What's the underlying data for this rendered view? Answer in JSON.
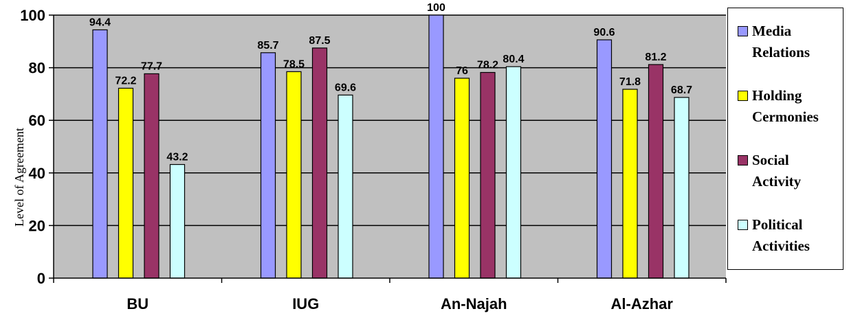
{
  "chart_data": {
    "type": "bar",
    "categories": [
      "BU",
      "IUG",
      "An-Najah",
      "Al-Azhar"
    ],
    "series": [
      {
        "name": "Media Relations",
        "color": "#9999FF",
        "values": [
          94.4,
          85.7,
          100,
          90.6
        ]
      },
      {
        "name": "Holding Cermonies",
        "color": "#FFFF00",
        "values": [
          72.2,
          78.5,
          76,
          71.8
        ]
      },
      {
        "name": "Social Activity",
        "color": "#993366",
        "values": [
          77.7,
          87.5,
          78.2,
          81.2
        ]
      },
      {
        "name": "Political Activities",
        "color": "#CCFFFF",
        "values": [
          43.2,
          69.6,
          80.4,
          68.7
        ]
      }
    ],
    "data_labels": [
      [
        "94.4",
        "85.7",
        "100",
        "90.6"
      ],
      [
        "72.2",
        "78.5",
        "76",
        "71.8"
      ],
      [
        "77.7",
        "87.5",
        "78.2",
        "81.2"
      ],
      [
        "43.2",
        "69.6",
        "80.4",
        "68.7"
      ]
    ],
    "ylabel": "Level of Agreement",
    "xlabel": "",
    "ylim": [
      0,
      100
    ],
    "yticks": [
      "0",
      "20",
      "40",
      "60",
      "80",
      "100"
    ],
    "grid": true,
    "plot_background": "#C0C0C0",
    "legend_position": "right"
  },
  "legend": {
    "items": [
      {
        "label": "Media\nRelations"
      },
      {
        "label": "Holding\nCermonies"
      },
      {
        "label": "Social\nActivity"
      },
      {
        "label": "Political\nActivities"
      }
    ]
  }
}
